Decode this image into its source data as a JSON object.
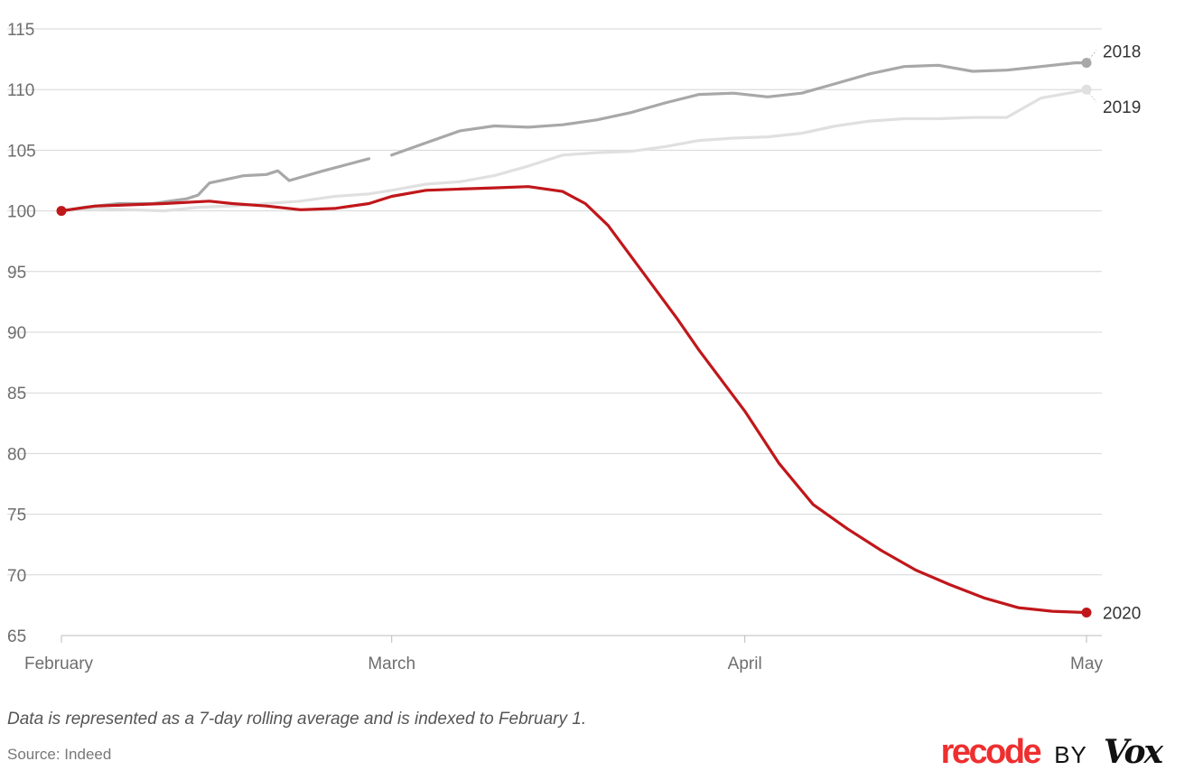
{
  "chart_data": {
    "type": "line",
    "title": "",
    "xlabel": "",
    "ylabel": "",
    "x_range": [
      "2020-02-01",
      "2020-05-01"
    ],
    "x_ticks": [
      {
        "label": "February",
        "date": "2020-02-01"
      },
      {
        "label": "March",
        "date": "2020-03-01"
      },
      {
        "label": "April",
        "date": "2020-04-01"
      },
      {
        "label": "May",
        "date": "2020-05-01"
      }
    ],
    "ylim": [
      65,
      115
    ],
    "y_ticks": [
      65,
      70,
      75,
      80,
      85,
      90,
      95,
      100,
      105,
      110,
      115
    ],
    "grid": "horizontal",
    "series": [
      {
        "name": "2019",
        "color": "#e0e0e0",
        "label_position": "below",
        "end_marker": true,
        "points": [
          [
            "2020-02-01",
            100.0
          ],
          [
            "2020-02-04",
            100.2
          ],
          [
            "2020-02-07",
            100.1
          ],
          [
            "2020-02-10",
            100.0
          ],
          [
            "2020-02-13",
            100.3
          ],
          [
            "2020-02-16",
            100.4
          ],
          [
            "2020-02-19",
            100.6
          ],
          [
            "2020-02-22",
            100.8
          ],
          [
            "2020-02-25",
            101.2
          ],
          [
            "2020-02-28",
            101.4
          ],
          [
            "2020-03-01",
            101.7
          ],
          [
            "2020-03-04",
            102.2
          ],
          [
            "2020-03-07",
            102.4
          ],
          [
            "2020-03-10",
            102.9
          ],
          [
            "2020-03-13",
            103.7
          ],
          [
            "2020-03-16",
            104.6
          ],
          [
            "2020-03-19",
            104.8
          ],
          [
            "2020-03-22",
            104.9
          ],
          [
            "2020-03-25",
            105.3
          ],
          [
            "2020-03-28",
            105.8
          ],
          [
            "2020-03-31",
            106.0
          ],
          [
            "2020-04-03",
            106.1
          ],
          [
            "2020-04-06",
            106.4
          ],
          [
            "2020-04-09",
            107.0
          ],
          [
            "2020-04-12",
            107.4
          ],
          [
            "2020-04-15",
            107.6
          ],
          [
            "2020-04-18",
            107.6
          ],
          [
            "2020-04-21",
            107.7
          ],
          [
            "2020-04-24",
            107.7
          ],
          [
            "2020-04-27",
            109.3
          ],
          [
            "2020-04-30",
            109.8
          ],
          [
            "2020-05-01",
            110.0
          ]
        ]
      },
      {
        "name": "2018",
        "color": "#a8a8a8",
        "label_position": "above",
        "end_marker": true,
        "points": [
          [
            "2020-02-01",
            100.0
          ],
          [
            "2020-02-03",
            100.3
          ],
          [
            "2020-02-06",
            100.6
          ],
          [
            "2020-02-09",
            100.6
          ],
          [
            "2020-02-12",
            101.0
          ],
          [
            "2020-02-13",
            101.3
          ],
          [
            "2020-02-14",
            102.3
          ],
          [
            "2020-02-17",
            102.9
          ],
          [
            "2020-02-19",
            103.0
          ],
          [
            "2020-02-20",
            103.3
          ],
          [
            "2020-02-21",
            102.5
          ],
          [
            "2020-02-24",
            103.3
          ],
          [
            "2020-02-26",
            103.8
          ],
          [
            "2020-02-28",
            104.3
          ],
          [
            null,
            null
          ],
          [
            "2020-03-01",
            104.6
          ],
          [
            "2020-03-04",
            105.6
          ],
          [
            "2020-03-07",
            106.6
          ],
          [
            "2020-03-10",
            107.0
          ],
          [
            "2020-03-13",
            106.9
          ],
          [
            "2020-03-16",
            107.1
          ],
          [
            "2020-03-19",
            107.5
          ],
          [
            "2020-03-22",
            108.1
          ],
          [
            "2020-03-25",
            108.9
          ],
          [
            "2020-03-28",
            109.6
          ],
          [
            "2020-03-31",
            109.7
          ],
          [
            "2020-04-03",
            109.4
          ],
          [
            "2020-04-06",
            109.7
          ],
          [
            "2020-04-09",
            110.5
          ],
          [
            "2020-04-12",
            111.3
          ],
          [
            "2020-04-15",
            111.9
          ],
          [
            "2020-04-18",
            112.0
          ],
          [
            "2020-04-21",
            111.5
          ],
          [
            "2020-04-24",
            111.6
          ],
          [
            "2020-04-27",
            111.9
          ],
          [
            "2020-04-30",
            112.2
          ],
          [
            "2020-05-01",
            112.2
          ]
        ]
      },
      {
        "name": "2020",
        "color": "#c0171b",
        "label_position": "right",
        "end_marker": true,
        "start_marker": true,
        "points": [
          [
            "2020-02-01",
            100.0
          ],
          [
            "2020-02-04",
            100.4
          ],
          [
            "2020-02-07",
            100.5
          ],
          [
            "2020-02-10",
            100.6
          ],
          [
            "2020-02-14",
            100.8
          ],
          [
            "2020-02-16",
            100.6
          ],
          [
            "2020-02-19",
            100.4
          ],
          [
            "2020-02-22",
            100.1
          ],
          [
            "2020-02-25",
            100.2
          ],
          [
            "2020-02-28",
            100.6
          ],
          [
            "2020-03-01",
            101.2
          ],
          [
            "2020-03-04",
            101.7
          ],
          [
            "2020-03-07",
            101.8
          ],
          [
            "2020-03-10",
            101.9
          ],
          [
            "2020-03-13",
            102.0
          ],
          [
            "2020-03-16",
            101.6
          ],
          [
            "2020-03-18",
            100.6
          ],
          [
            "2020-03-20",
            98.8
          ],
          [
            "2020-03-23",
            95.0
          ],
          [
            "2020-03-26",
            91.2
          ],
          [
            "2020-03-28",
            88.5
          ],
          [
            "2020-04-01",
            83.5
          ],
          [
            "2020-04-04",
            79.2
          ],
          [
            "2020-04-07",
            75.8
          ],
          [
            "2020-04-10",
            73.8
          ],
          [
            "2020-04-13",
            72.0
          ],
          [
            "2020-04-16",
            70.4
          ],
          [
            "2020-04-19",
            69.2
          ],
          [
            "2020-04-22",
            68.1
          ],
          [
            "2020-04-25",
            67.3
          ],
          [
            "2020-04-28",
            67.0
          ],
          [
            "2020-05-01",
            66.9
          ]
        ]
      }
    ]
  },
  "footnote": "Data is represented as a 7-day rolling average and is indexed to February 1.",
  "source": "Source: Indeed",
  "brand": {
    "recode": "recode",
    "by": "BY",
    "vox": "Vox"
  },
  "colors": {
    "gridline": "#d6d6d6",
    "axis": "#bbbbbb",
    "tick_text": "#6e6e6e"
  }
}
